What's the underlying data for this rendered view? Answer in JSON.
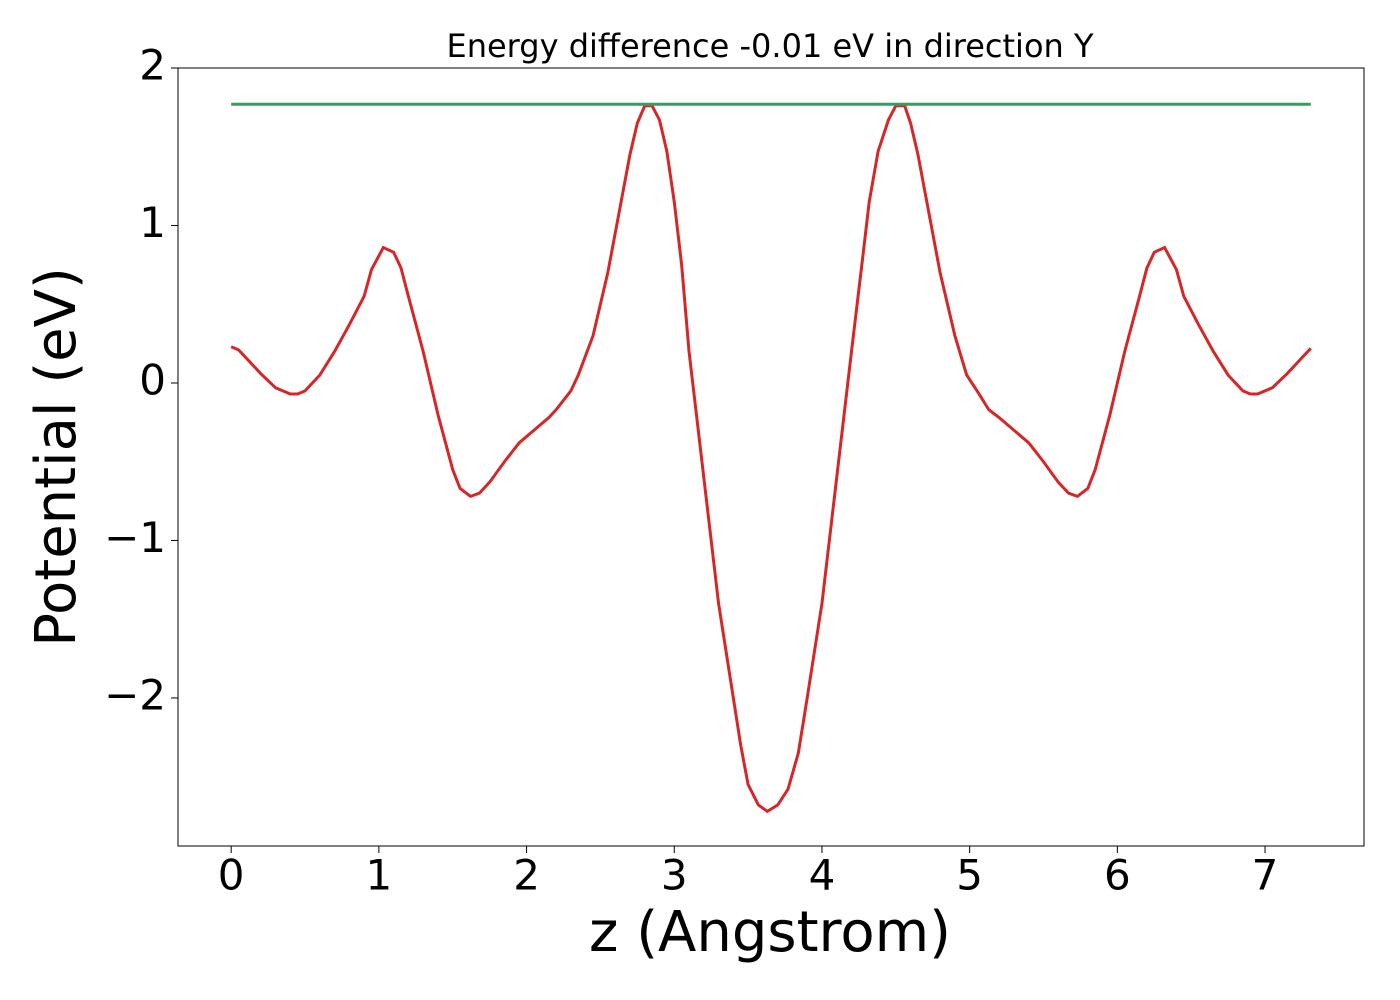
{
  "chart_data": {
    "type": "line",
    "title": "Energy difference -0.01 eV in direction Y",
    "x_label": "z (Angstrom)",
    "y_label": "Potential (eV)",
    "xlim": [
      -0.36,
      7.67
    ],
    "ylim": [
      -2.94,
      2
    ],
    "xticks": [
      0,
      1,
      2,
      3,
      4,
      5,
      6,
      7
    ],
    "yticks": [
      {
        "value": -2,
        "label": "−2"
      },
      {
        "value": -1,
        "label": "−1"
      },
      0,
      1,
      2
    ],
    "series": [
      {
        "color": "#d62728",
        "x": [
          0,
          0.05,
          0.1,
          0.2,
          0.3,
          0.4,
          0.45,
          0.5,
          0.6,
          0.7,
          0.8,
          0.9,
          0.95,
          1.03,
          1.1,
          1.15,
          1.2,
          1.3,
          1.4,
          1.5,
          1.55,
          1.62,
          1.68,
          1.75,
          1.85,
          1.95,
          2.05,
          2.15,
          2.2,
          2.3,
          2.35,
          2.45,
          2.55,
          2.65,
          2.7,
          2.75,
          2.8,
          2.85,
          2.9,
          2.95,
          3.0,
          3.05,
          3.1,
          3.2,
          3.3,
          3.4,
          3.45,
          3.5,
          3.57,
          3.63,
          3.7,
          3.77,
          3.84,
          3.9,
          4.0,
          4.1,
          4.2,
          4.27,
          4.32,
          4.38,
          4.45,
          4.5,
          4.56,
          4.6,
          4.65,
          4.7,
          4.8,
          4.9,
          4.98,
          5.05,
          5.13,
          5.2,
          5.3,
          5.4,
          5.5,
          5.6,
          5.67,
          5.73,
          5.8,
          5.85,
          5.95,
          6.05,
          6.15,
          6.2,
          6.25,
          6.32,
          6.4,
          6.45,
          6.55,
          6.65,
          6.75,
          6.85,
          6.9,
          6.95,
          7.05,
          7.15,
          7.25,
          7.31
        ],
        "values": [
          0.23,
          0.21,
          0.16,
          0.06,
          -0.03,
          -0.07,
          -0.07,
          -0.05,
          0.05,
          0.2,
          0.37,
          0.55,
          0.72,
          0.86,
          0.83,
          0.73,
          0.55,
          0.2,
          -0.2,
          -0.55,
          -0.67,
          -0.72,
          -0.7,
          -0.63,
          -0.5,
          -0.38,
          -0.3,
          -0.22,
          -0.17,
          -0.05,
          0.05,
          0.3,
          0.7,
          1.2,
          1.45,
          1.65,
          1.76,
          1.76,
          1.67,
          1.47,
          1.15,
          0.75,
          0.2,
          -0.6,
          -1.4,
          -2.0,
          -2.3,
          -2.55,
          -2.68,
          -2.72,
          -2.68,
          -2.58,
          -2.35,
          -2.0,
          -1.4,
          -0.6,
          0.2,
          0.75,
          1.15,
          1.47,
          1.67,
          1.76,
          1.76,
          1.65,
          1.45,
          1.2,
          0.7,
          0.3,
          0.05,
          -0.05,
          -0.17,
          -0.22,
          -0.3,
          -0.38,
          -0.5,
          -0.63,
          -0.7,
          -0.72,
          -0.67,
          -0.55,
          -0.2,
          0.2,
          0.55,
          0.73,
          0.83,
          0.86,
          0.72,
          0.55,
          0.37,
          0.2,
          0.05,
          -0.05,
          -0.07,
          -0.07,
          -0.03,
          0.06,
          0.16,
          0.22
        ]
      },
      {
        "color": "#3a9a66",
        "x": [
          0,
          7.31
        ],
        "values": [
          1.77,
          1.77
        ]
      }
    ]
  }
}
